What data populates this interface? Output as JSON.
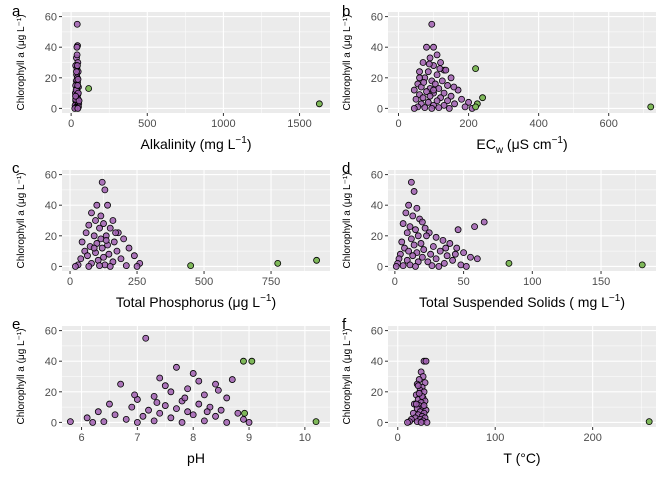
{
  "colors": {
    "main_points": "#a05fb0",
    "outlier_points": "#7fb85a",
    "panel_background": "#ebebeb"
  },
  "chart_data": [
    {
      "type": "scatter",
      "tag": "a",
      "xlabel_main": "Alkalinity (mg L",
      "xlabel_sup": "−1",
      "xlabel_end": ")",
      "ylabel": "Chlorophyll a (μg L⁻¹)",
      "xlim": [
        -60,
        1700
      ],
      "ylim": [
        -3,
        63
      ],
      "xticks": [
        0,
        500,
        1000,
        1500
      ],
      "yticks": [
        0,
        20,
        40,
        60
      ],
      "grid": true,
      "points": [
        [
          40,
          55
        ],
        [
          42,
          41
        ],
        [
          38,
          40
        ],
        [
          35,
          33
        ],
        [
          44,
          30
        ],
        [
          30,
          28
        ],
        [
          38,
          26
        ],
        [
          46,
          24
        ],
        [
          36,
          22
        ],
        [
          40,
          20
        ],
        [
          34,
          18
        ],
        [
          42,
          17
        ],
        [
          30,
          15
        ],
        [
          48,
          14
        ],
        [
          36,
          12
        ],
        [
          40,
          11
        ],
        [
          28,
          10
        ],
        [
          44,
          9
        ],
        [
          32,
          8
        ],
        [
          38,
          7
        ],
        [
          46,
          6
        ],
        [
          30,
          5
        ],
        [
          40,
          4
        ],
        [
          34,
          3
        ],
        [
          50,
          3
        ],
        [
          26,
          2
        ],
        [
          42,
          2
        ],
        [
          36,
          1
        ],
        [
          48,
          1
        ],
        [
          32,
          0.5
        ],
        [
          40,
          0.3
        ],
        [
          24,
          0
        ],
        [
          44,
          0
        ],
        [
          30,
          6
        ],
        [
          52,
          5
        ],
        [
          38,
          13
        ],
        [
          45,
          19
        ],
        [
          35,
          24
        ],
        [
          41,
          28
        ],
        [
          39,
          35
        ],
        [
          33,
          12
        ],
        [
          47,
          10
        ],
        [
          29,
          8
        ],
        [
          43,
          15
        ]
      ],
      "outliers": [
        [
          115,
          13
        ],
        [
          1630,
          3
        ]
      ]
    },
    {
      "type": "scatter",
      "tag": "b",
      "xlabel_main": "EC",
      "xlabel_sub": "w",
      "xlabel_after": " (μS cm",
      "xlabel_sup": "−1",
      "xlabel_end": ")",
      "ylabel": "Chlorophyll a (μg L⁻¹)",
      "xlim": [
        -30,
        735
      ],
      "ylim": [
        -3,
        63
      ],
      "xticks": [
        0,
        200,
        400,
        600
      ],
      "yticks": [
        0,
        20,
        40,
        60
      ],
      "grid": true,
      "points": [
        [
          95,
          55
        ],
        [
          100,
          40
        ],
        [
          80,
          40
        ],
        [
          110,
          35
        ],
        [
          90,
          33
        ],
        [
          120,
          30
        ],
        [
          70,
          30
        ],
        [
          100,
          28
        ],
        [
          130,
          25
        ],
        [
          60,
          24
        ],
        [
          85,
          24
        ],
        [
          110,
          22
        ],
        [
          150,
          20
        ],
        [
          75,
          20
        ],
        [
          95,
          18
        ],
        [
          125,
          18
        ],
        [
          55,
          16
        ],
        [
          105,
          16
        ],
        [
          140,
          15
        ],
        [
          65,
          14
        ],
        [
          90,
          13
        ],
        [
          115,
          13
        ],
        [
          170,
          12
        ],
        [
          45,
          12
        ],
        [
          80,
          11
        ],
        [
          130,
          10
        ],
        [
          100,
          10
        ],
        [
          60,
          9
        ],
        [
          150,
          8
        ],
        [
          90,
          8
        ],
        [
          120,
          7
        ],
        [
          70,
          7
        ],
        [
          180,
          6
        ],
        [
          50,
          6
        ],
        [
          110,
          5
        ],
        [
          140,
          5
        ],
        [
          85,
          4
        ],
        [
          200,
          4
        ],
        [
          65,
          3
        ],
        [
          160,
          3
        ],
        [
          100,
          2
        ],
        [
          130,
          2
        ],
        [
          55,
          1
        ],
        [
          190,
          1
        ],
        [
          75,
          0.5
        ],
        [
          115,
          0.5
        ],
        [
          45,
          0
        ],
        [
          95,
          0
        ],
        [
          145,
          0
        ],
        [
          210,
          0
        ],
        [
          60,
          20
        ],
        [
          135,
          25
        ],
        [
          100,
          12
        ],
        [
          118,
          26
        ],
        [
          88,
          29
        ],
        [
          72,
          17
        ],
        [
          158,
          14
        ]
      ],
      "outliers": [
        [
          220,
          26
        ],
        [
          240,
          7
        ],
        [
          225,
          3
        ],
        [
          220,
          1
        ],
        [
          720,
          1
        ]
      ]
    },
    {
      "type": "scatter",
      "tag": "c",
      "xlabel_main": "Total Phosphorus (μg L",
      "xlabel_sup": "−1",
      "xlabel_end": ")",
      "ylabel": "Chlorophyll a (μg L⁻¹)",
      "xlim": [
        -30,
        970
      ],
      "ylim": [
        -3,
        63
      ],
      "xticks": [
        0,
        250,
        500,
        750
      ],
      "yticks": [
        0,
        20,
        40,
        60
      ],
      "grid": true,
      "points": [
        [
          120,
          55
        ],
        [
          130,
          50
        ],
        [
          100,
          40
        ],
        [
          140,
          40
        ],
        [
          80,
          35
        ],
        [
          115,
          33
        ],
        [
          160,
          30
        ],
        [
          95,
          30
        ],
        [
          125,
          28
        ],
        [
          70,
          27
        ],
        [
          150,
          25
        ],
        [
          110,
          25
        ],
        [
          180,
          22
        ],
        [
          60,
          22
        ],
        [
          135,
          20
        ],
        [
          90,
          20
        ],
        [
          200,
          18
        ],
        [
          115,
          18
        ],
        [
          45,
          16
        ],
        [
          165,
          16
        ],
        [
          100,
          15
        ],
        [
          140,
          14
        ],
        [
          75,
          13
        ],
        [
          220,
          12
        ],
        [
          120,
          12
        ],
        [
          55,
          10
        ],
        [
          175,
          10
        ],
        [
          95,
          9
        ],
        [
          145,
          8
        ],
        [
          240,
          7
        ],
        [
          65,
          7
        ],
        [
          125,
          6
        ],
        [
          190,
          5
        ],
        [
          40,
          5
        ],
        [
          105,
          4
        ],
        [
          160,
          3
        ],
        [
          260,
          2
        ],
        [
          80,
          2
        ],
        [
          130,
          1
        ],
        [
          30,
          1
        ],
        [
          210,
          0.5
        ],
        [
          110,
          0.5
        ],
        [
          20,
          0
        ],
        [
          70,
          0
        ],
        [
          150,
          0
        ],
        [
          250,
          0
        ],
        [
          90,
          12
        ],
        [
          170,
          22
        ],
        [
          135,
          17
        ]
      ],
      "outliers": [
        [
          450,
          0.5
        ],
        [
          775,
          2
        ],
        [
          920,
          4
        ]
      ]
    },
    {
      "type": "scatter",
      "tag": "d",
      "xlabel_main": "Total Suspended Solids ( mg L",
      "xlabel_sup": "−1",
      "xlabel_end": ")",
      "ylabel": "Chlorophyll a (μg L⁻¹)",
      "xlim": [
        -5,
        190
      ],
      "ylim": [
        -3,
        63
      ],
      "xticks": [
        0,
        50,
        100,
        150
      ],
      "yticks": [
        0,
        20,
        40,
        60
      ],
      "grid": true,
      "points": [
        [
          12,
          55
        ],
        [
          14,
          49
        ],
        [
          10,
          40
        ],
        [
          16,
          38
        ],
        [
          8,
          35
        ],
        [
          13,
          33
        ],
        [
          18,
          31
        ],
        [
          20,
          29
        ],
        [
          6,
          28
        ],
        [
          11,
          26
        ],
        [
          22,
          25
        ],
        [
          15,
          24
        ],
        [
          25,
          22
        ],
        [
          9,
          22
        ],
        [
          17,
          20
        ],
        [
          30,
          19
        ],
        [
          12,
          18
        ],
        [
          35,
          17
        ],
        [
          5,
          16
        ],
        [
          19,
          15
        ],
        [
          40,
          15
        ],
        [
          14,
          14
        ],
        [
          28,
          13
        ],
        [
          7,
          12
        ],
        [
          45,
          12
        ],
        [
          21,
          11
        ],
        [
          10,
          10
        ],
        [
          33,
          10
        ],
        [
          50,
          9
        ],
        [
          16,
          9
        ],
        [
          4,
          8
        ],
        [
          26,
          8
        ],
        [
          38,
          7
        ],
        [
          13,
          7
        ],
        [
          55,
          6
        ],
        [
          20,
          6
        ],
        [
          3,
          5
        ],
        [
          30,
          5
        ],
        [
          60,
          5
        ],
        [
          9,
          4
        ],
        [
          42,
          4
        ],
        [
          17,
          3
        ],
        [
          24,
          3
        ],
        [
          2,
          2
        ],
        [
          36,
          2
        ],
        [
          11,
          1
        ],
        [
          48,
          1
        ],
        [
          6,
          0.5
        ],
        [
          27,
          0.5
        ],
        [
          1,
          0
        ],
        [
          15,
          0
        ],
        [
          32,
          0
        ],
        [
          52,
          0
        ],
        [
          65,
          29
        ],
        [
          58,
          26
        ],
        [
          46,
          24
        ],
        [
          23,
          20
        ],
        [
          37,
          12
        ],
        [
          44,
          8
        ]
      ],
      "outliers": [
        [
          83,
          2
        ],
        [
          180,
          1
        ]
      ]
    },
    {
      "type": "scatter",
      "tag": "e",
      "xlabel_main": "pH",
      "xlabel_sup": "",
      "xlabel_end": "",
      "ylabel": "Chlorophyll a (μg L⁻¹)",
      "xlim": [
        5.65,
        10.45
      ],
      "ylim": [
        -3,
        63
      ],
      "xticks": [
        6,
        7,
        8,
        9,
        10
      ],
      "yticks": [
        0,
        20,
        40,
        60
      ],
      "grid": true,
      "points": [
        [
          7.15,
          55
        ],
        [
          8.7,
          28
        ],
        [
          8.0,
          32
        ],
        [
          7.7,
          36
        ],
        [
          8.4,
          25
        ],
        [
          7.4,
          29
        ],
        [
          7.9,
          22
        ],
        [
          6.7,
          25
        ],
        [
          7.6,
          20
        ],
        [
          8.2,
          18
        ],
        [
          7.3,
          17
        ],
        [
          8.6,
          16
        ],
        [
          7.0,
          15
        ],
        [
          7.8,
          14
        ],
        [
          8.1,
          12
        ],
        [
          6.5,
          12
        ],
        [
          7.5,
          11
        ],
        [
          8.3,
          10
        ],
        [
          6.9,
          10
        ],
        [
          7.7,
          9
        ],
        [
          8.5,
          8
        ],
        [
          7.2,
          8
        ],
        [
          6.3,
          7
        ],
        [
          7.9,
          7
        ],
        [
          8.8,
          6
        ],
        [
          7.4,
          6
        ],
        [
          6.6,
          5
        ],
        [
          8.0,
          5
        ],
        [
          7.1,
          4
        ],
        [
          8.4,
          4
        ],
        [
          6.1,
          3
        ],
        [
          7.6,
          3
        ],
        [
          8.9,
          2
        ],
        [
          6.8,
          2
        ],
        [
          7.3,
          1
        ],
        [
          8.2,
          1
        ],
        [
          5.8,
          0.5
        ],
        [
          6.4,
          0.5
        ],
        [
          7.0,
          0
        ],
        [
          7.8,
          0
        ],
        [
          8.6,
          0
        ],
        [
          6.2,
          0
        ],
        [
          9.0,
          0
        ],
        [
          7.5,
          24
        ],
        [
          8.1,
          27
        ],
        [
          6.95,
          18
        ],
        [
          8.45,
          21
        ],
        [
          7.35,
          13
        ],
        [
          7.85,
          16
        ],
        [
          8.25,
          7
        ]
      ],
      "outliers": [
        [
          8.9,
          40
        ],
        [
          9.05,
          40
        ],
        [
          8.92,
          6
        ],
        [
          10.2,
          0.5
        ]
      ]
    },
    {
      "type": "scatter",
      "tag": "f",
      "xlabel_main": "T (°C)",
      "xlabel_sup": "",
      "xlabel_end": "",
      "ylabel": "Chlorophyll a (μg L⁻¹)",
      "xlim": [
        -10,
        265
      ],
      "ylim": [
        -3,
        63
      ],
      "xticks": [
        0,
        100,
        200
      ],
      "yticks": [
        0,
        20,
        40,
        60
      ],
      "grid": true,
      "points": [
        [
          27,
          40
        ],
        [
          29,
          40
        ],
        [
          24,
          33
        ],
        [
          26,
          30
        ],
        [
          22,
          28
        ],
        [
          28,
          26
        ],
        [
          20,
          25
        ],
        [
          25,
          23
        ],
        [
          23,
          21
        ],
        [
          27,
          20
        ],
        [
          19,
          18
        ],
        [
          26,
          16
        ],
        [
          21,
          15
        ],
        [
          28,
          14
        ],
        [
          24,
          13
        ],
        [
          17,
          12
        ],
        [
          22,
          11
        ],
        [
          26,
          10
        ],
        [
          20,
          9
        ],
        [
          29,
          8
        ],
        [
          23,
          7
        ],
        [
          16,
          6
        ],
        [
          27,
          6
        ],
        [
          21,
          5
        ],
        [
          25,
          4
        ],
        [
          18,
          3
        ],
        [
          28,
          3
        ],
        [
          14,
          2
        ],
        [
          23,
          2
        ],
        [
          26,
          1
        ],
        [
          12,
          0.5
        ],
        [
          20,
          0.5
        ],
        [
          10,
          0
        ],
        [
          24,
          0
        ],
        [
          30,
          0
        ],
        [
          19,
          12
        ],
        [
          25,
          17
        ],
        [
          22,
          19
        ],
        [
          27,
          11
        ],
        [
          21,
          24
        ]
      ],
      "outliers": [
        [
          258,
          0.5
        ]
      ]
    }
  ]
}
